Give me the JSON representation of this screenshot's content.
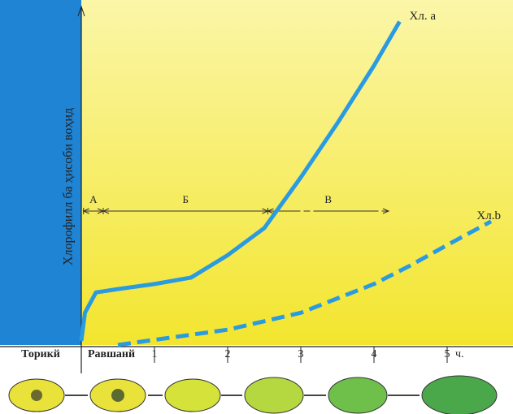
{
  "chart_data": {
    "type": "line",
    "y_label": "Хлорофилл ба ҳисоби воҳид",
    "x_unit": "ч.",
    "x_regions": [
      "Торикй",
      "Равшанй"
    ],
    "xlim": [
      0,
      5.9
    ],
    "ylim": [
      0,
      100
    ],
    "xticks": [
      1,
      2,
      3,
      4,
      5
    ],
    "series": [
      {
        "name": "Хл. a",
        "color": "#2a9be0",
        "style": "solid",
        "x": [
          0,
          0.05,
          0.2,
          0.5,
          1,
          1.5,
          2,
          2.5,
          3,
          3.5,
          4,
          4.35
        ],
        "values": [
          1.7,
          10,
          16,
          17,
          18.5,
          20.4,
          27,
          35,
          50,
          66,
          83,
          96
        ]
      },
      {
        "name": "Хл.b",
        "color": "#2a9be0",
        "style": "dashed",
        "x": [
          0.5,
          1,
          2,
          3,
          4,
          4.5,
          5,
          5.6
        ],
        "values": [
          0.5,
          2,
          5,
          10,
          18.5,
          24,
          30,
          37
        ]
      }
    ],
    "phases": [
      {
        "label": "А",
        "x": [
          0.03,
          0.3
        ]
      },
      {
        "label": "Б",
        "x": [
          0.3,
          2.55
        ]
      },
      {
        "label": "В",
        "x": [
          2.55,
          4.2
        ]
      }
    ]
  }
}
